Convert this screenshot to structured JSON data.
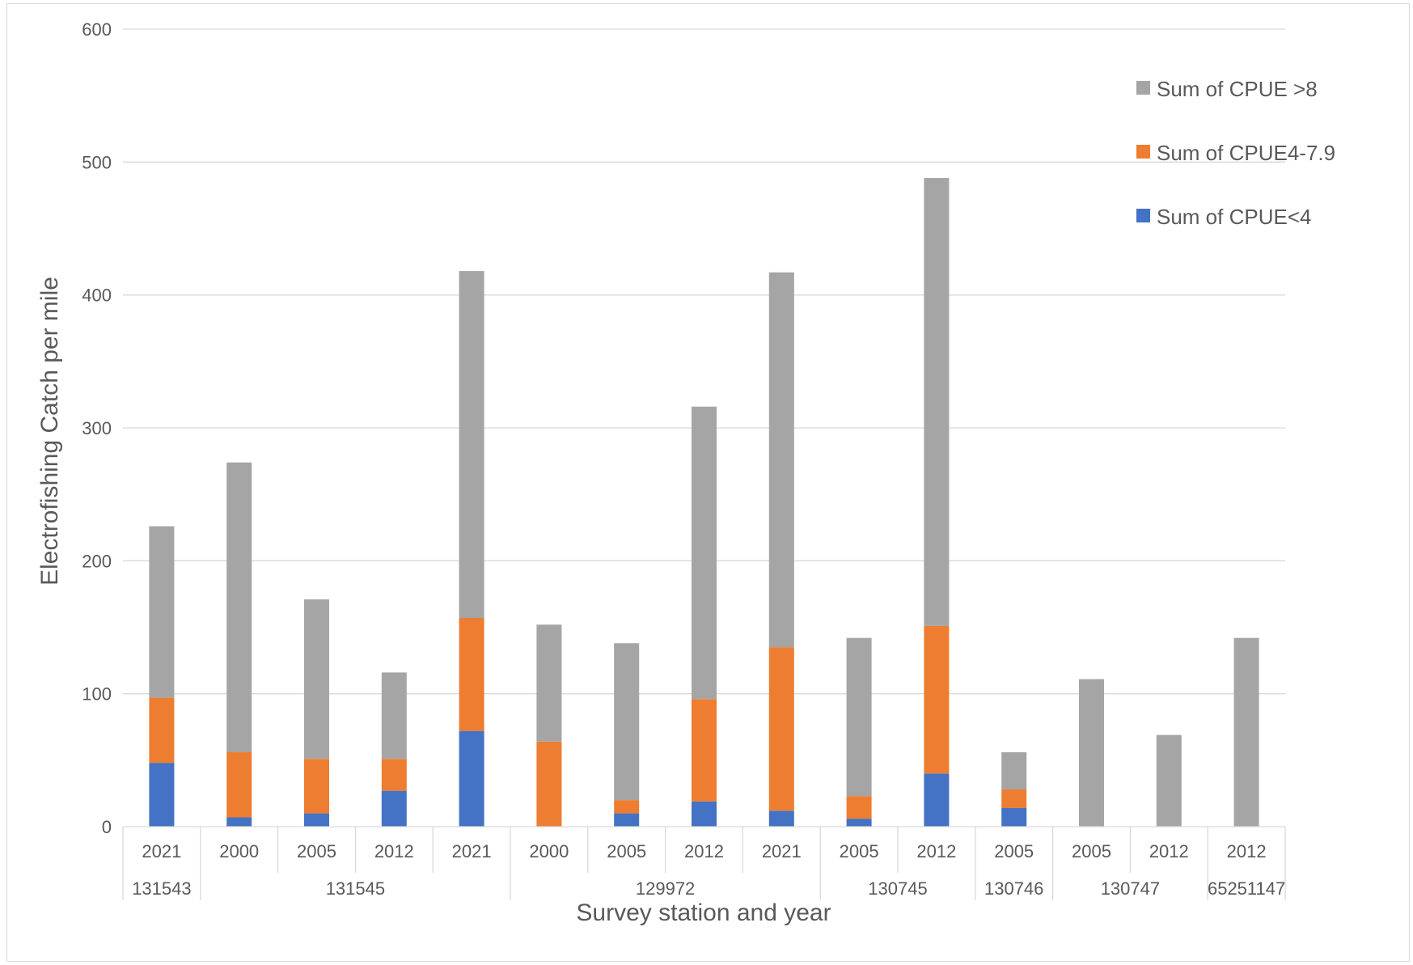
{
  "chart_data": {
    "type": "bar",
    "stacked": true,
    "title": "",
    "xlabel": "Survey station and year",
    "ylabel": "Electrofishing Catch per mile",
    "ylim": [
      0,
      600
    ],
    "yticks": [
      0,
      100,
      200,
      300,
      400,
      500,
      600
    ],
    "grid": true,
    "legend_position": "top-right",
    "categories": [
      {
        "year": "2021",
        "station": "131543"
      },
      {
        "year": "2000",
        "station": "131545"
      },
      {
        "year": "2005",
        "station": "131545"
      },
      {
        "year": "2012",
        "station": "131545"
      },
      {
        "year": "2021",
        "station": "131545"
      },
      {
        "year": "2000",
        "station": "129972"
      },
      {
        "year": "2005",
        "station": "129972"
      },
      {
        "year": "2012",
        "station": "129972"
      },
      {
        "year": "2021",
        "station": "129972"
      },
      {
        "year": "2005",
        "station": "130745"
      },
      {
        "year": "2012",
        "station": "130745"
      },
      {
        "year": "2005",
        "station": "130746"
      },
      {
        "year": "2005",
        "station": "130747"
      },
      {
        "year": "2012",
        "station": "130747"
      },
      {
        "year": "2012",
        "station": "65251147"
      }
    ],
    "station_groups": [
      {
        "label": "131543",
        "count": 1
      },
      {
        "label": "131545",
        "count": 4
      },
      {
        "label": "129972",
        "count": 4
      },
      {
        "label": "130745",
        "count": 2
      },
      {
        "label": "130746",
        "count": 1
      },
      {
        "label": "130747",
        "count": 2
      },
      {
        "label": "65251147",
        "count": 1
      }
    ],
    "series": [
      {
        "name": "Sum of CPUE<4",
        "color": "#4472C4",
        "values": [
          48,
          7,
          10,
          27,
          72,
          0,
          10,
          19,
          12,
          6,
          40,
          14,
          0,
          0,
          0
        ]
      },
      {
        "name": "Sum of CPUE4-7.9",
        "color": "#ED7D31",
        "values": [
          49,
          49,
          41,
          24,
          85,
          64,
          10,
          77,
          123,
          17,
          111,
          14,
          0,
          0,
          0
        ]
      },
      {
        "name": "Sum of CPUE >8",
        "color": "#A5A5A5",
        "values": [
          129,
          218,
          120,
          65,
          261,
          88,
          118,
          220,
          282,
          119,
          337,
          28,
          111,
          69,
          142
        ]
      }
    ],
    "legend_order": [
      "Sum of CPUE >8",
      "Sum of CPUE4-7.9",
      "Sum of CPUE<4"
    ]
  }
}
